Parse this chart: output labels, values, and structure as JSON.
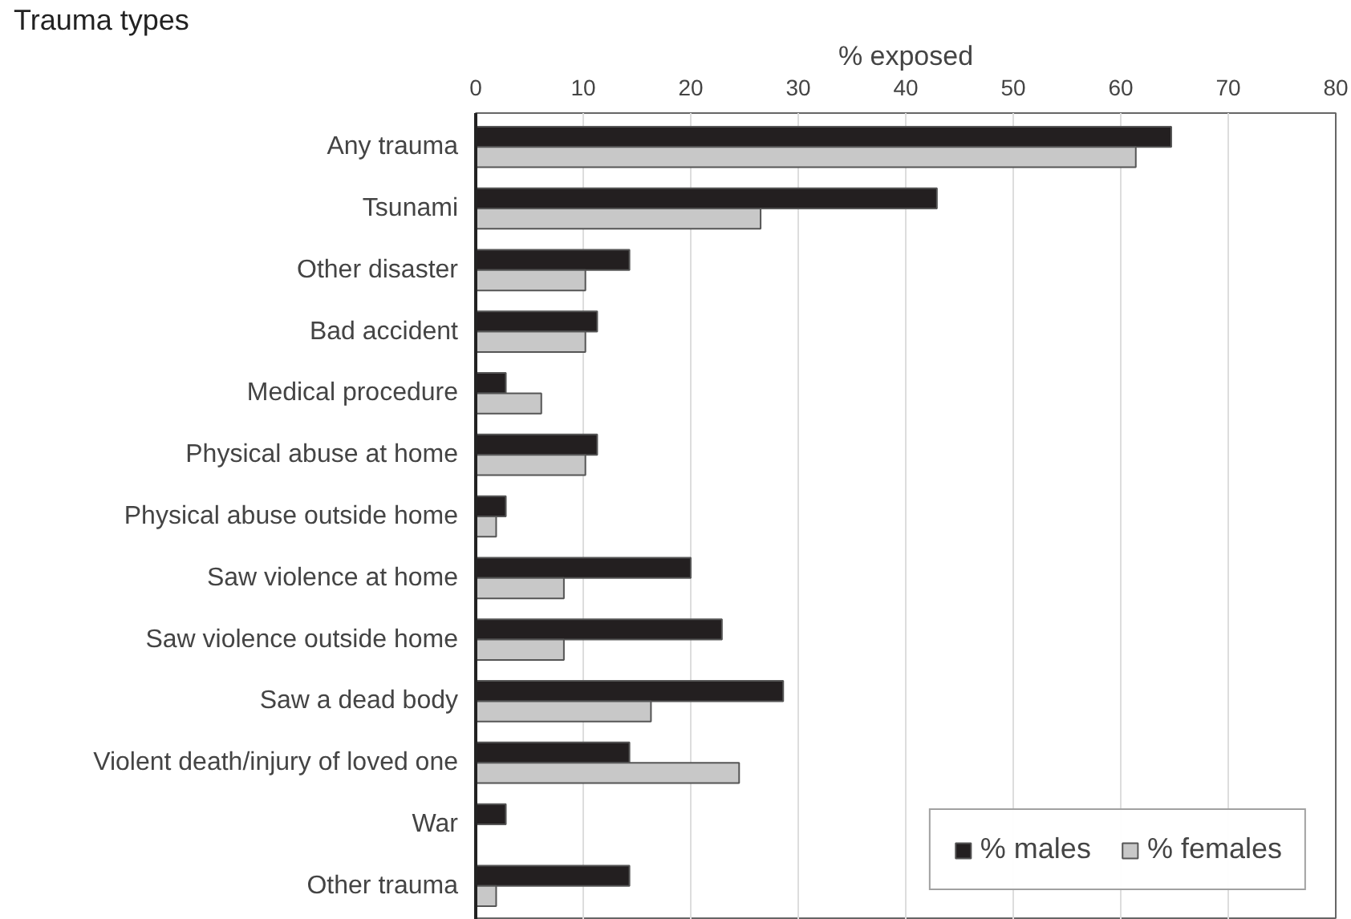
{
  "chart_data": {
    "type": "bar",
    "orientation": "horizontal",
    "xlabel": "% exposed",
    "ylabel": "Trauma types",
    "categories": [
      "Any trauma",
      "Tsunami",
      "Other disaster",
      "Bad accident",
      "Medical procedure",
      "Physical abuse at home",
      "Physical abuse outside home",
      "Saw violence at home",
      "Saw violence outside home",
      "Saw a dead body",
      "Violent death/injury of loved one",
      "War",
      "Other trauma"
    ],
    "series": [
      {
        "name": "% males",
        "color": "#231f20",
        "values": [
          64.7,
          42.9,
          14.3,
          11.3,
          2.8,
          11.3,
          2.8,
          20.0,
          22.9,
          28.6,
          14.3,
          2.8,
          14.3
        ]
      },
      {
        "name": "% females",
        "color": "#c8c8c8",
        "values": [
          61.4,
          26.5,
          10.2,
          10.2,
          6.1,
          10.2,
          1.9,
          8.2,
          8.2,
          16.3,
          24.5,
          null,
          1.9
        ]
      }
    ],
    "xlim": [
      0,
      80
    ],
    "xticks": [
      0,
      10,
      20,
      30,
      40,
      50,
      60,
      70,
      80
    ],
    "grid": "x",
    "legend": "bottom right"
  }
}
